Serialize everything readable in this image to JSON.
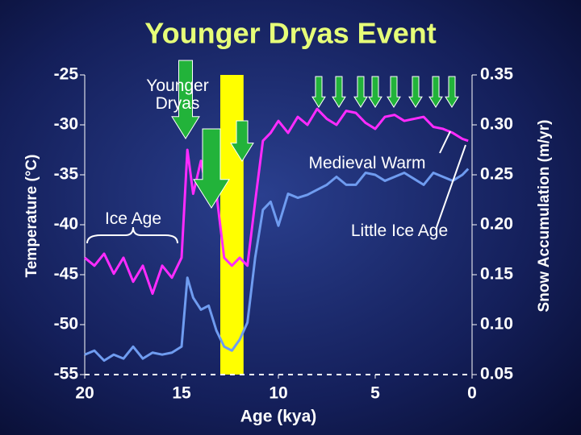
{
  "chart_data": {
    "type": "line",
    "title": "Younger Dryas Event",
    "xlabel": "Age (kya)",
    "ylabel": "Temperature (°C)",
    "y2label": "Snow Accumulation (m/yr)",
    "annotations": [
      "Younger Dryas",
      "Ice Age",
      "Medieval Warm",
      "Little Ice Age"
    ],
    "x": [
      20,
      19.5,
      19,
      18.5,
      18,
      17.5,
      17,
      16.5,
      16,
      15.5,
      15,
      14.7,
      14.4,
      14,
      13.6,
      13.2,
      12.8,
      12.4,
      12,
      11.6,
      11.2,
      10.8,
      10.4,
      10,
      9.5,
      9,
      8.5,
      8,
      7.5,
      7,
      6.5,
      6,
      5.5,
      5,
      4.5,
      4,
      3.5,
      3,
      2.5,
      2,
      1.5,
      1,
      0.5,
      0.2
    ],
    "series": [
      {
        "name": "Temperature",
        "color": "#ff2bff",
        "values": [
          -43.3,
          -44.1,
          -42.9,
          -44.9,
          -43.3,
          -45.7,
          -44.1,
          -46.9,
          -44.1,
          -45.3,
          -43.3,
          -32.5,
          -36.9,
          -33.6,
          -37.7,
          -36.9,
          -43.3,
          -44.1,
          -43.3,
          -44.1,
          -37.7,
          -31.6,
          -30.8,
          -29.6,
          -30.8,
          -29.2,
          -30.0,
          -28.4,
          -29.4,
          -30.0,
          -28.6,
          -28.8,
          -29.8,
          -30.4,
          -29.2,
          -29.0,
          -29.6,
          -29.4,
          -29.2,
          -30.2,
          -30.4,
          -30.8,
          -31.4,
          -31.6
        ]
      },
      {
        "name": "Snow Accumulation",
        "color": "#6f9cf0",
        "axis": "y2",
        "values": [
          0.07,
          0.074,
          0.064,
          0.07,
          0.066,
          0.078,
          0.066,
          0.072,
          0.07,
          0.072,
          0.078,
          0.147,
          0.127,
          0.115,
          0.119,
          0.094,
          0.078,
          0.074,
          0.085,
          0.102,
          0.167,
          0.215,
          0.223,
          0.199,
          0.231,
          0.227,
          0.23,
          0.235,
          0.24,
          0.248,
          0.24,
          0.24,
          0.252,
          0.25,
          0.244,
          0.248,
          0.252,
          0.246,
          0.24,
          0.252,
          0.248,
          0.244,
          0.25,
          0.256
        ]
      }
    ],
    "span": [
      13,
      11.8
    ],
    "span_color": "#ffff00",
    "xlim": [
      20,
      0
    ],
    "xticks": [
      20,
      15,
      10,
      5,
      0
    ],
    "ylim": [
      -55,
      -25
    ],
    "yticks": [
      -25,
      -30,
      -35,
      -40,
      -45,
      -50,
      -55
    ],
    "y2lim": [
      0.05,
      0.35
    ],
    "y2ticks": [
      0.35,
      {
        "value": 0.3,
        "label": "0.30"
      },
      0.25,
      {
        "value": 0.2,
        "label": "0.20"
      },
      0.15,
      {
        "value": 0.1,
        "label": "0.10"
      },
      0.05
    ]
  }
}
